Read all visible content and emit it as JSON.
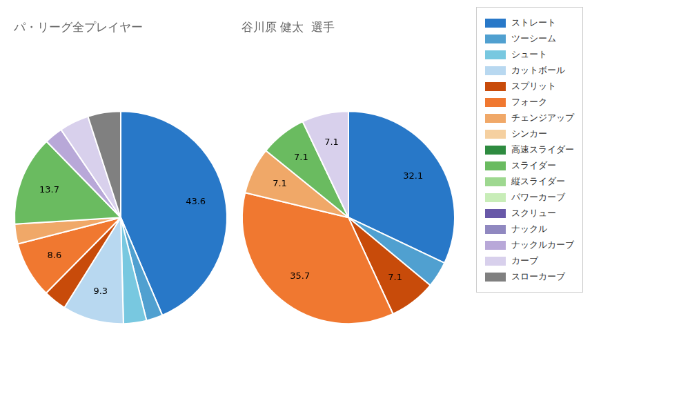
{
  "chart_data": {
    "type": "pie",
    "categories": [
      "パ・リーグ全プレイヤー",
      "谷川原 健太  選手"
    ],
    "legend": "upper right",
    "data_labels": true,
    "series": [
      {
        "name": "ストレート",
        "color": "#2878C8",
        "values": [
          43.6,
          32.1
        ],
        "value_labels": [
          "43.6",
          "32.1"
        ]
      },
      {
        "name": "ツーシーム",
        "color": "#50A0D0",
        "values": [
          2.5,
          4.0
        ],
        "value_labels": [
          null,
          null
        ]
      },
      {
        "name": "シュート",
        "color": "#78C8E0",
        "values": [
          3.5,
          null
        ],
        "value_labels": [
          null,
          null
        ]
      },
      {
        "name": "カットボール",
        "color": "#B8D8F0",
        "values": [
          9.3,
          null
        ],
        "value_labels": [
          "9.3",
          null
        ]
      },
      {
        "name": "スプリット",
        "color": "#C84B0A",
        "values": [
          3.5,
          7.1
        ],
        "value_labels": [
          null,
          "7.1"
        ]
      },
      {
        "name": "フォーク",
        "color": "#F07830",
        "values": [
          8.6,
          35.7
        ],
        "value_labels": [
          "8.6",
          "35.7"
        ]
      },
      {
        "name": "チェンジアップ",
        "color": "#F0A868",
        "values": [
          3.0,
          7.1
        ],
        "value_labels": [
          null,
          "7.1"
        ]
      },
      {
        "name": "シンカー",
        "color": "#F5D0A0",
        "values": [
          null,
          null
        ],
        "value_labels": [
          null,
          null
        ]
      },
      {
        "name": "高速スライダー",
        "color": "#2E8B40",
        "values": [
          null,
          null
        ],
        "value_labels": [
          null,
          null
        ]
      },
      {
        "name": "スライダー",
        "color": "#6ABB60",
        "values": [
          13.7,
          7.1
        ],
        "value_labels": [
          "13.7",
          "7.1"
        ]
      },
      {
        "name": "縦スライダー",
        "color": "#9ED890",
        "values": [
          null,
          null
        ],
        "value_labels": [
          null,
          null
        ]
      },
      {
        "name": "パワーカーブ",
        "color": "#C8EDB8",
        "values": [
          null,
          null
        ],
        "value_labels": [
          null,
          null
        ]
      },
      {
        "name": "スクリュー",
        "color": "#6858A8",
        "values": [
          null,
          null
        ],
        "value_labels": [
          null,
          null
        ]
      },
      {
        "name": "ナックル",
        "color": "#9088C0",
        "values": [
          null,
          null
        ],
        "value_labels": [
          null,
          null
        ]
      },
      {
        "name": "ナックルカーブ",
        "color": "#B8A8D8",
        "values": [
          2.8,
          null
        ],
        "value_labels": [
          null,
          null
        ]
      },
      {
        "name": "カーブ",
        "color": "#D8D0EC",
        "values": [
          4.5,
          7.1
        ],
        "value_labels": [
          null,
          "7.1"
        ]
      },
      {
        "name": "スローカーブ",
        "color": "#808080",
        "values": [
          5.0,
          null
        ],
        "value_labels": [
          null,
          null
        ]
      }
    ]
  }
}
